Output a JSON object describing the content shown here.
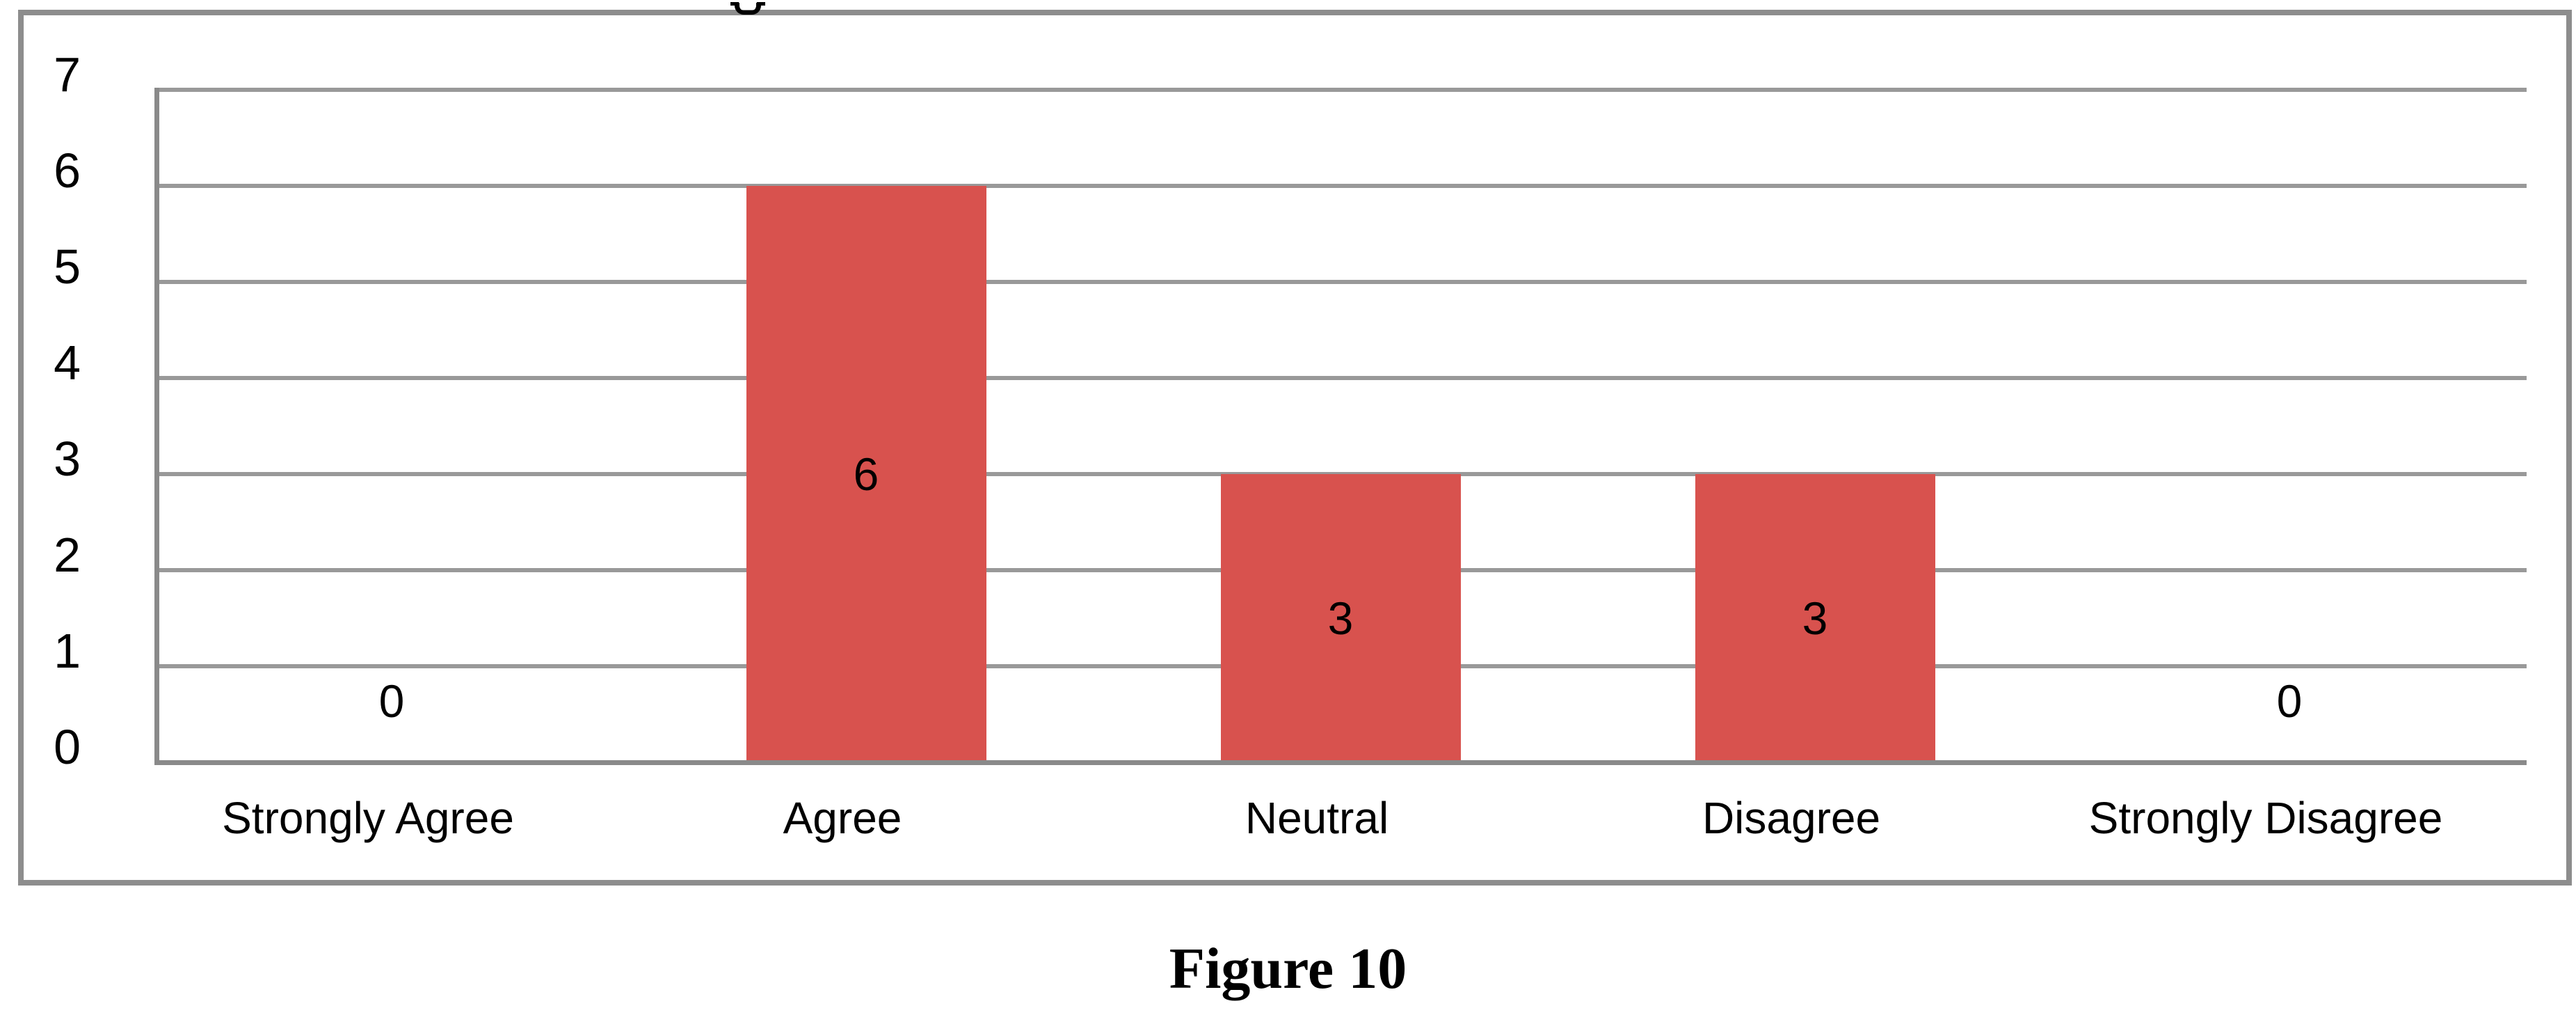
{
  "figure": {
    "caption": "Figure 10"
  },
  "decorations": {
    "cropped_title_fragment": "descender of a cut-off title glyph on the top frame border"
  },
  "chart_data": {
    "type": "bar",
    "title": "",
    "xlabel": "",
    "ylabel": "",
    "categories": [
      "Strongly Agree",
      "Agree",
      "Neutral",
      "Disagree",
      "Strongly Disagree"
    ],
    "values": [
      0,
      6,
      3,
      3,
      0
    ],
    "data_labels": [
      "0",
      "6",
      "3",
      "3",
      "0"
    ],
    "data_label_position": "center",
    "yticks": [
      0,
      1,
      2,
      3,
      4,
      5,
      6,
      7
    ],
    "ylim": [
      0,
      7
    ],
    "grid": "horizontal",
    "legend_position": "none",
    "colors": {
      "bar": "#d8524e",
      "gridline": "#999999",
      "axis": "#8a8a8a",
      "frame_border": "#8d8d8d",
      "text": "#000000"
    }
  }
}
